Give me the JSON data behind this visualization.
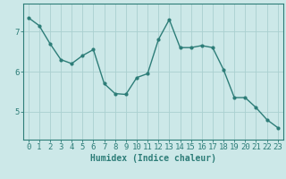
{
  "x": [
    0,
    1,
    2,
    3,
    4,
    5,
    6,
    7,
    8,
    9,
    10,
    11,
    12,
    13,
    14,
    15,
    16,
    17,
    18,
    19,
    20,
    21,
    22,
    23
  ],
  "y": [
    7.35,
    7.15,
    6.7,
    6.3,
    6.2,
    6.4,
    6.55,
    5.7,
    5.45,
    5.43,
    5.85,
    5.95,
    6.8,
    7.3,
    6.6,
    6.6,
    6.65,
    6.6,
    6.05,
    5.35,
    5.35,
    5.1,
    4.8,
    4.6
  ],
  "line_color": "#2d7d78",
  "marker": "o",
  "marker_size": 2.0,
  "linewidth": 1.0,
  "bg_color": "#cce8e8",
  "grid_color": "#aad0d0",
  "xlabel": "Humidex (Indice chaleur)",
  "xlabel_fontsize": 7,
  "yticks": [
    5,
    6,
    7
  ],
  "xticks": [
    0,
    1,
    2,
    3,
    4,
    5,
    6,
    7,
    8,
    9,
    10,
    11,
    12,
    13,
    14,
    15,
    16,
    17,
    18,
    19,
    20,
    21,
    22,
    23
  ],
  "ylim": [
    4.3,
    7.7
  ],
  "xlim": [
    -0.5,
    23.5
  ],
  "tick_fontsize": 6.5,
  "tick_color": "#2d7d78",
  "axis_color": "#2d7d78"
}
